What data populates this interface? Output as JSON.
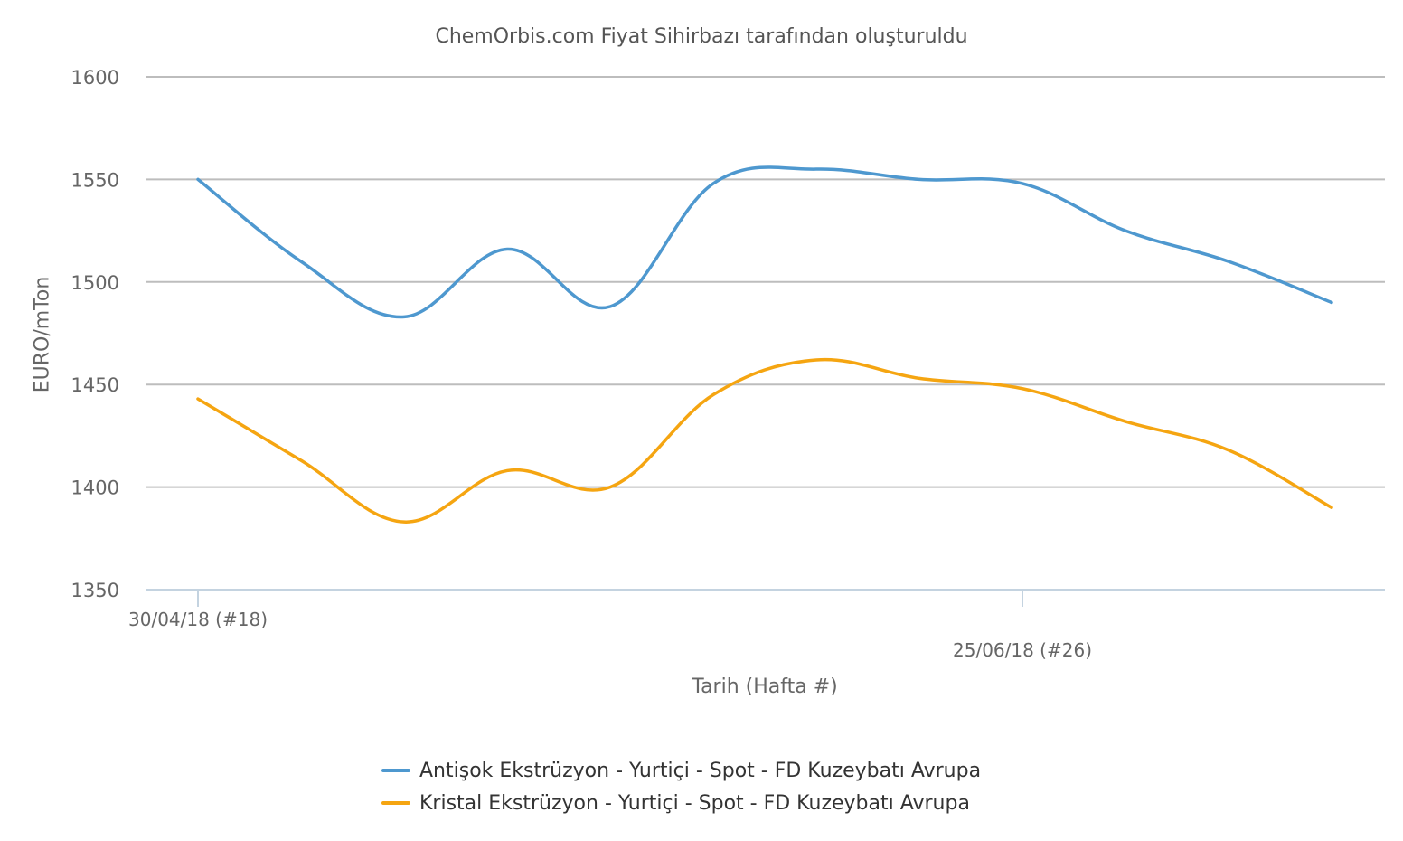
{
  "chart_data": {
    "type": "line",
    "title": "ChemOrbis.com Fiyat Sihirbazı tarafından oluşturuldu",
    "xlabel": "Tarih (Hafta #)",
    "ylabel": "EURO/mTon",
    "ylim": [
      1350,
      1600
    ],
    "yticks": [
      1350,
      1400,
      1450,
      1500,
      1550,
      1600
    ],
    "grid": true,
    "legend_position": "bottom",
    "x_tick_labels": [
      {
        "index": 0,
        "label": "30/04/18 (#18)"
      },
      {
        "index": 8,
        "label": "25/06/18 (#26)"
      }
    ],
    "x_count": 12,
    "series": [
      {
        "name": "Antişok Ekstrüzyon - Yurtiçi - Spot - FD Kuzeybatı Avrupa",
        "color": "#4e98cf",
        "values": [
          1550,
          1510,
          1483,
          1516,
          1488,
          1548,
          1555,
          1550,
          1548,
          1525,
          1510,
          1490
        ]
      },
      {
        "name": "Kristal Ekstrüzyon - Yurtiçi - Spot - FD Kuzeybatı Avrupa",
        "color": "#f5a511",
        "values": [
          1443,
          1413,
          1383,
          1408,
          1400,
          1445,
          1462,
          1453,
          1448,
          1432,
          1418,
          1390
        ]
      }
    ]
  }
}
